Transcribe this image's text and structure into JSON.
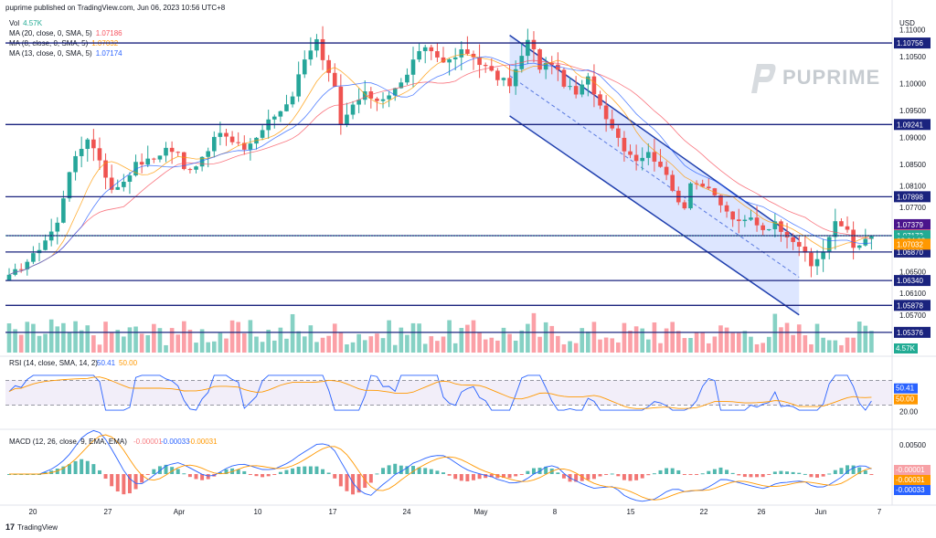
{
  "header": {
    "published": "puprime published on TradingView.com, Jun 06, 2023 10:56 UTC+8"
  },
  "legend": {
    "vol": {
      "label": "Vol",
      "value": "4.57K"
    },
    "ma20": {
      "label": "MA (20, close, 0, SMA, 5)",
      "value": "1.07186",
      "color": "#f7525f"
    },
    "ma8": {
      "label": "MA (8, close, 0, SMA, 5)",
      "value": "1.07032",
      "color": "#ff9800"
    },
    "ma13": {
      "label": "MA (13, close, 0, SMA, 5)",
      "value": "1.07174",
      "color": "#2962ff"
    }
  },
  "watermark": "PUPRIME",
  "footer": "TradingView",
  "chart_data": {
    "type": "candlestick",
    "currency": "USD",
    "ylim": [
      1.05,
      1.1125
    ],
    "price_ticks": [
      "1.11000",
      "1.10500",
      "1.10000",
      "1.09500",
      "1.09000",
      "1.08500",
      "1.08100",
      "1.07700",
      "1.06500",
      "1.06100",
      "1.05700"
    ],
    "horizontal_levels": [
      "1.10756",
      "1.09241",
      "1.07898",
      "1.07174",
      "1.06870",
      "1.06340",
      "1.05878",
      "1.05376"
    ],
    "price_labels": [
      {
        "text": "1.07379",
        "price": 1.07379,
        "color": "#4a148c"
      },
      {
        "text": "1.07186",
        "price": 1.07186,
        "color": "#f77c80"
      },
      {
        "text": "1.07173",
        "price": 1.07173,
        "color": "#22ab94"
      },
      {
        "text": "02:04:02",
        "price": 1.0708,
        "color": "#22ab94"
      },
      {
        "text": "1.07032",
        "price": 1.07015,
        "color": "#ff9800"
      }
    ],
    "last_price": 1.07173,
    "date_labels": [
      "20",
      "27",
      "Apr",
      "10",
      "17",
      "24",
      "May",
      "8",
      "15",
      "22",
      "26",
      "Jun",
      "7"
    ],
    "channel": {
      "upper_start": 1.109,
      "upper_end": 1.071,
      "lower_start": 1.094,
      "lower_end": 1.057
    },
    "volume": {
      "last": "4.57K"
    },
    "rsi": {
      "label": "RSI (14, close, SMA, 14, 2)",
      "value": "50.41",
      "ma_value": "50.00",
      "levels": [
        "60.00",
        "20.00"
      ],
      "band": [
        30,
        70
      ]
    },
    "macd": {
      "label": "MACD (12, 26, close, 9, EMA, EMA)",
      "hist": "-0.00001",
      "macd": "-0.00033",
      "signal": "-0.00031",
      "ticks": [
        "0.00500"
      ]
    },
    "close_path": [
      [
        0,
        1.064
      ],
      [
        4,
        1.068
      ],
      [
        8,
        1.074
      ],
      [
        10,
        1.084
      ],
      [
        12,
        1.088
      ],
      [
        13,
        1.09
      ],
      [
        15,
        1.086
      ],
      [
        17,
        1.08
      ],
      [
        19,
        1.082
      ],
      [
        21,
        1.085
      ],
      [
        24,
        1.086
      ],
      [
        26,
        1.088
      ],
      [
        28,
        1.087
      ],
      [
        29,
        1.084
      ],
      [
        31,
        1.085
      ],
      [
        33,
        1.088
      ],
      [
        35,
        1.091
      ],
      [
        37,
        1.089
      ],
      [
        39,
        1.088
      ],
      [
        41,
        1.09
      ],
      [
        43,
        1.093
      ],
      [
        45,
        1.095
      ],
      [
        47,
        1.098
      ],
      [
        49,
        1.105
      ],
      [
        51,
        1.108
      ],
      [
        52,
        1.104
      ],
      [
        54,
        1.099
      ],
      [
        55,
        1.092
      ],
      [
        57,
        1.096
      ],
      [
        59,
        1.098
      ],
      [
        61,
        1.097
      ],
      [
        63,
        1.098
      ],
      [
        65,
        1.1
      ],
      [
        67,
        1.104
      ],
      [
        69,
        1.107
      ],
      [
        71,
        1.105
      ],
      [
        73,
        1.104
      ],
      [
        75,
        1.106
      ],
      [
        77,
        1.105
      ],
      [
        79,
        1.103
      ],
      [
        81,
        1.101
      ],
      [
        83,
        1.1
      ],
      [
        85,
        1.105
      ],
      [
        86,
        1.108
      ],
      [
        87,
        1.106
      ],
      [
        88,
        1.103
      ],
      [
        90,
        1.104
      ],
      [
        92,
        1.1
      ],
      [
        94,
        1.098
      ],
      [
        96,
        1.101
      ],
      [
        98,
        1.096
      ],
      [
        100,
        1.092
      ],
      [
        102,
        1.088
      ],
      [
        104,
        1.086
      ],
      [
        106,
        1.087
      ],
      [
        108,
        1.085
      ],
      [
        110,
        1.08
      ],
      [
        112,
        1.077
      ],
      [
        113,
        1.082
      ],
      [
        115,
        1.081
      ],
      [
        117,
        1.079
      ],
      [
        119,
        1.076
      ],
      [
        121,
        1.074
      ],
      [
        123,
        1.075
      ],
      [
        125,
        1.073
      ],
      [
        127,
        1.074
      ],
      [
        129,
        1.072
      ],
      [
        131,
        1.07
      ],
      [
        132,
        1.068
      ],
      [
        133,
        1.066
      ],
      [
        135,
        1.069
      ],
      [
        137,
        1.074
      ],
      [
        139,
        1.073
      ],
      [
        140,
        1.07
      ],
      [
        141,
        1.0695
      ],
      [
        142,
        1.071
      ],
      [
        143,
        1.0717
      ]
    ]
  }
}
